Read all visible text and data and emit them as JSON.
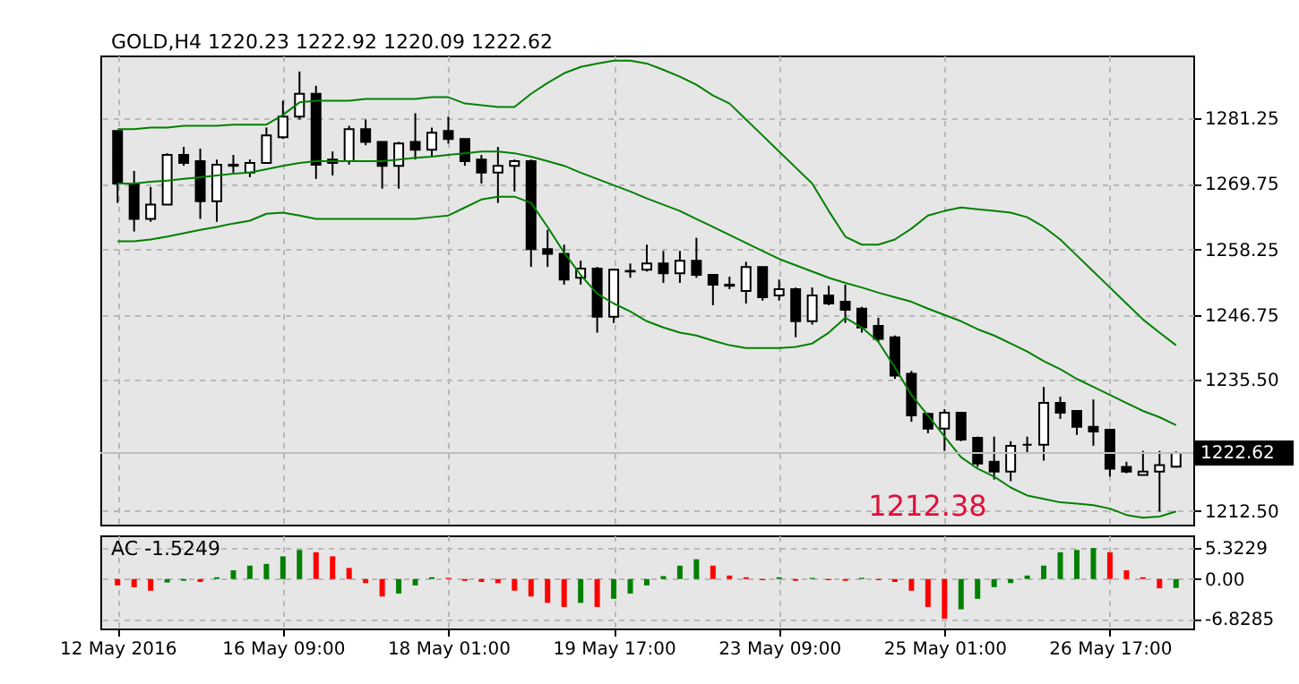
{
  "chart_data": [
    {
      "type": "candlestick",
      "title": "GOLD,H4 1220.23 1222.92 1220.09 1222.62",
      "categories": [
        "12 May 2016",
        null,
        null,
        null,
        null,
        null,
        null,
        null,
        null,
        null,
        "16 May 09:00",
        null,
        null,
        null,
        null,
        null,
        null,
        null,
        null,
        null,
        "18 May 01:00",
        null,
        null,
        null,
        null,
        null,
        null,
        null,
        null,
        null,
        "19 May 17:00",
        null,
        null,
        null,
        null,
        null,
        null,
        null,
        null,
        null,
        "23 May 09:00",
        null,
        null,
        null,
        null,
        null,
        null,
        null,
        null,
        null,
        "25 May 01:00",
        null,
        null,
        null,
        null,
        null,
        null,
        null,
        null,
        null,
        "26 May 17:00",
        null,
        null,
        null,
        null
      ],
      "ohlc": [
        [
          1279.0,
          1279.0,
          1266.4,
          1269.8
        ],
        [
          1269.8,
          1272.0,
          1261.4,
          1263.6
        ],
        [
          1263.6,
          1269.2,
          1263.1,
          1266.1
        ],
        [
          1266.1,
          1275.1,
          1266.1,
          1274.8
        ],
        [
          1274.8,
          1276.2,
          1272.9,
          1273.4
        ],
        [
          1273.7,
          1275.9,
          1263.6,
          1266.7
        ],
        [
          1266.7,
          1274.0,
          1263.1,
          1273.1
        ],
        [
          1273.1,
          1274.8,
          1271.7,
          1272.9
        ],
        [
          1271.7,
          1274.0,
          1270.9,
          1273.4
        ],
        [
          1273.4,
          1279.6,
          1273.4,
          1278.2
        ],
        [
          1277.9,
          1284.3,
          1277.6,
          1281.5
        ],
        [
          1281.5,
          1289.4,
          1281.0,
          1285.5
        ],
        [
          1285.5,
          1286.9,
          1270.6,
          1273.1
        ],
        [
          1274.0,
          1275.4,
          1271.2,
          1273.4
        ],
        [
          1273.7,
          1279.9,
          1273.1,
          1279.3
        ],
        [
          1279.3,
          1281.0,
          1276.5,
          1277.1
        ],
        [
          1277.1,
          1277.1,
          1268.9,
          1272.9
        ],
        [
          1272.9,
          1277.1,
          1268.9,
          1276.8
        ],
        [
          1277.1,
          1282.1,
          1274.0,
          1275.7
        ],
        [
          1275.7,
          1279.6,
          1274.5,
          1278.7
        ],
        [
          1279.0,
          1281.5,
          1276.8,
          1277.6
        ],
        [
          1277.6,
          1277.6,
          1272.9,
          1273.7
        ],
        [
          1274.0,
          1274.8,
          1269.8,
          1271.7
        ],
        [
          1271.7,
          1276.2,
          1266.4,
          1272.9
        ],
        [
          1272.9,
          1274.0,
          1268.4,
          1273.7
        ],
        [
          1273.7,
          1274.0,
          1255.2,
          1258.3
        ],
        [
          1258.3,
          1261.7,
          1255.2,
          1257.5
        ],
        [
          1257.5,
          1259.1,
          1252.1,
          1253.0
        ],
        [
          1253.3,
          1256.3,
          1252.1,
          1254.9
        ],
        [
          1254.9,
          1255.2,
          1243.7,
          1246.5
        ],
        [
          1246.5,
          1254.9,
          1245.4,
          1254.7
        ],
        [
          1254.4,
          1255.8,
          1253.3,
          1254.5
        ],
        [
          1254.7,
          1259.1,
          1254.4,
          1255.8
        ],
        [
          1255.8,
          1258.0,
          1252.4,
          1254.1
        ],
        [
          1254.1,
          1258.0,
          1252.4,
          1256.3
        ],
        [
          1256.3,
          1260.3,
          1253.3,
          1253.8
        ],
        [
          1253.8,
          1253.8,
          1248.5,
          1252.1
        ],
        [
          1252.1,
          1253.5,
          1251.3,
          1251.9
        ],
        [
          1251.0,
          1256.1,
          1248.8,
          1255.2
        ],
        [
          1255.2,
          1255.2,
          1249.3,
          1249.9
        ],
        [
          1250.2,
          1253.0,
          1249.3,
          1251.3
        ],
        [
          1251.3,
          1251.6,
          1242.9,
          1245.7
        ],
        [
          1245.7,
          1251.6,
          1245.1,
          1250.2
        ],
        [
          1250.2,
          1251.9,
          1248.5,
          1248.8
        ],
        [
          1249.1,
          1252.1,
          1245.4,
          1247.7
        ],
        [
          1247.9,
          1248.2,
          1243.7,
          1244.6
        ],
        [
          1244.9,
          1246.3,
          1242.1,
          1242.6
        ],
        [
          1242.9,
          1243.2,
          1235.6,
          1236.2
        ],
        [
          1236.5,
          1237.0,
          1228.1,
          1229.2
        ],
        [
          1229.5,
          1229.7,
          1226.1,
          1226.9
        ],
        [
          1226.9,
          1230.3,
          1223.0,
          1229.7
        ],
        [
          1229.7,
          1229.7,
          1224.7,
          1225.0
        ],
        [
          1225.3,
          1225.5,
          1220.2,
          1220.8
        ],
        [
          1221.1,
          1225.5,
          1218.0,
          1219.4
        ],
        [
          1219.4,
          1224.7,
          1217.7,
          1223.9
        ],
        [
          1224.1,
          1225.5,
          1222.7,
          1224.1
        ],
        [
          1224.1,
          1234.2,
          1221.3,
          1231.4
        ],
        [
          1231.4,
          1232.5,
          1228.6,
          1229.7
        ],
        [
          1230.0,
          1230.0,
          1225.8,
          1227.2
        ],
        [
          1227.2,
          1232.0,
          1223.9,
          1226.4
        ],
        [
          1226.7,
          1226.9,
          1218.5,
          1219.9
        ],
        [
          1220.2,
          1221.1,
          1219.1,
          1219.4
        ],
        [
          1218.8,
          1223.0,
          1218.8,
          1219.4
        ],
        [
          1219.4,
          1223.0,
          1212.38,
          1220.5
        ],
        [
          1220.23,
          1222.92,
          1220.09,
          1222.62
        ]
      ],
      "series": [
        {
          "type": "line",
          "color": "#008000",
          "values": [
            1279.3,
            1279.3,
            1279.6,
            1279.6,
            1279.9,
            1279.9,
            1279.9,
            1280.1,
            1280.1,
            1280.1,
            1281.8,
            1284.0,
            1284.3,
            1284.3,
            1284.3,
            1284.6,
            1284.6,
            1284.6,
            1284.6,
            1284.9,
            1284.9,
            1283.8,
            1283.5,
            1283.2,
            1283.2,
            1285.5,
            1287.4,
            1289.1,
            1290.2,
            1290.8,
            1291.3,
            1291.3,
            1290.8,
            1289.7,
            1288.5,
            1287.1,
            1285.2,
            1283.8,
            1281.0,
            1278.2,
            1275.4,
            1272.6,
            1269.8,
            1265.0,
            1260.5,
            1259.1,
            1259.1,
            1260.0,
            1261.9,
            1264.2,
            1265.0,
            1265.6,
            1265.3,
            1265.0,
            1264.7,
            1263.9,
            1262.2,
            1260.0,
            1257.2,
            1254.4,
            1251.6,
            1248.8,
            1246.0,
            1243.7,
            1241.5
          ]
        },
        {
          "type": "line",
          "color": "#008000",
          "values": [
            1269.8,
            1269.8,
            1270.1,
            1270.3,
            1270.6,
            1270.9,
            1271.2,
            1271.5,
            1271.7,
            1272.3,
            1272.9,
            1273.4,
            1273.7,
            1273.7,
            1273.7,
            1273.7,
            1273.7,
            1274.0,
            1274.3,
            1274.5,
            1274.8,
            1275.1,
            1275.4,
            1275.4,
            1275.1,
            1274.5,
            1273.7,
            1272.9,
            1271.7,
            1270.6,
            1269.5,
            1268.4,
            1267.2,
            1266.1,
            1265.0,
            1263.6,
            1262.2,
            1260.8,
            1259.4,
            1258.0,
            1256.6,
            1255.5,
            1254.4,
            1253.3,
            1252.4,
            1251.6,
            1250.7,
            1249.9,
            1249.1,
            1247.9,
            1246.8,
            1245.7,
            1244.3,
            1243.2,
            1241.8,
            1240.4,
            1238.7,
            1237.3,
            1235.6,
            1234.2,
            1232.8,
            1231.4,
            1230.0,
            1228.9,
            1227.5
          ]
        },
        {
          "type": "line",
          "color": "#008000",
          "values": [
            1259.7,
            1259.7,
            1260.0,
            1260.5,
            1261.1,
            1261.7,
            1262.2,
            1262.8,
            1263.3,
            1264.5,
            1264.7,
            1264.2,
            1263.6,
            1263.6,
            1263.6,
            1263.6,
            1263.6,
            1263.6,
            1263.6,
            1263.9,
            1264.2,
            1265.6,
            1267.0,
            1267.5,
            1267.5,
            1266.4,
            1262.2,
            1257.7,
            1253.8,
            1250.5,
            1248.8,
            1247.4,
            1245.7,
            1244.6,
            1243.7,
            1243.2,
            1242.3,
            1241.5,
            1241.0,
            1241.0,
            1241.0,
            1241.2,
            1241.8,
            1243.7,
            1246.3,
            1244.6,
            1242.1,
            1237.6,
            1232.8,
            1229.2,
            1225.5,
            1221.9,
            1219.9,
            1218.5,
            1216.6,
            1215.2,
            1214.6,
            1214.0,
            1213.8,
            1213.5,
            1212.9,
            1211.8,
            1211.3,
            1211.5,
            1212.4
          ]
        }
      ],
      "ylim": [
        1210.1,
        1292.2
      ],
      "yticks": [
        1281.25,
        1269.75,
        1258.25,
        1246.75,
        {
          "value": 1235.5,
          "label": "1235.50"
        },
        {
          "value": 1212.5,
          "label": "1212.50"
        }
      ],
      "grid": true,
      "tick_labels": "y",
      "ref_lines": [
        {
          "axis": "y",
          "value": 1222.62,
          "label": "1222.62",
          "color": "#c0c0c0"
        }
      ],
      "annotations": [
        "1212.38"
      ]
    },
    {
      "type": "bar",
      "title": "AC -1.5249",
      "categories": [
        "12 May 2016",
        null,
        null,
        null,
        null,
        null,
        null,
        null,
        null,
        null,
        "16 May 09:00",
        null,
        null,
        null,
        null,
        null,
        null,
        null,
        null,
        null,
        "18 May 01:00",
        null,
        null,
        null,
        null,
        null,
        null,
        null,
        null,
        null,
        "19 May 17:00",
        null,
        null,
        null,
        null,
        null,
        null,
        null,
        null,
        null,
        "23 May 09:00",
        null,
        null,
        null,
        null,
        null,
        null,
        null,
        null,
        null,
        "25 May 01:00",
        null,
        null,
        null,
        null,
        null,
        null,
        null,
        null,
        null,
        "26 May 17:00",
        null,
        null,
        null,
        null
      ],
      "values": [
        -1.1,
        -1.4,
        -2.0,
        -0.6,
        -0.3,
        -0.5,
        0.3,
        1.5,
        2.3,
        2.6,
        3.9,
        5.0,
        4.6,
        3.9,
        1.9,
        -0.7,
        -3.0,
        -2.5,
        -1.1,
        0.3,
        0.2,
        -0.3,
        -0.5,
        -0.7,
        -2.0,
        -3.0,
        -4.1,
        -4.8,
        -4.1,
        -4.8,
        -3.4,
        -2.5,
        -1.1,
        0.5,
        2.3,
        3.4,
        2.3,
        0.6,
        0.3,
        -0.2,
        0.3,
        -0.3,
        0.2,
        -0.2,
        -0.3,
        0.2,
        -0.2,
        -0.5,
        -2.0,
        -4.8,
        -6.8285,
        -5.2,
        -3.4,
        -1.4,
        -0.7,
        0.6,
        2.3,
        4.6,
        5.0,
        5.3229,
        4.6,
        1.5,
        0.3,
        -1.6,
        -1.5249
      ],
      "colors": [
        "#ff0000",
        "#ff0000",
        "#ff0000",
        "#008000",
        "#008000",
        "#ff0000",
        "#008000",
        "#008000",
        "#008000",
        "#008000",
        "#008000",
        "#008000",
        "#ff0000",
        "#ff0000",
        "#ff0000",
        "#ff0000",
        "#ff0000",
        "#008000",
        "#008000",
        "#008000",
        "#ff0000",
        "#ff0000",
        "#ff0000",
        "#ff0000",
        "#ff0000",
        "#ff0000",
        "#ff0000",
        "#ff0000",
        "#008000",
        "#ff0000",
        "#008000",
        "#008000",
        "#008000",
        "#008000",
        "#008000",
        "#008000",
        "#ff0000",
        "#ff0000",
        "#ff0000",
        "#ff0000",
        "#008000",
        "#ff0000",
        "#008000",
        "#ff0000",
        "#ff0000",
        "#008000",
        "#ff0000",
        "#ff0000",
        "#ff0000",
        "#ff0000",
        "#ff0000",
        "#008000",
        "#008000",
        "#008000",
        "#008000",
        "#008000",
        "#008000",
        "#008000",
        "#008000",
        "#008000",
        "#ff0000",
        "#ff0000",
        "#ff0000",
        "#ff0000",
        "#008000"
      ],
      "ylim": [
        -8.5,
        7.5
      ],
      "yticks": [
        5.3229,
        {
          "value": 0,
          "label": "0.00"
        },
        -6.8285
      ],
      "grid": true
    }
  ]
}
